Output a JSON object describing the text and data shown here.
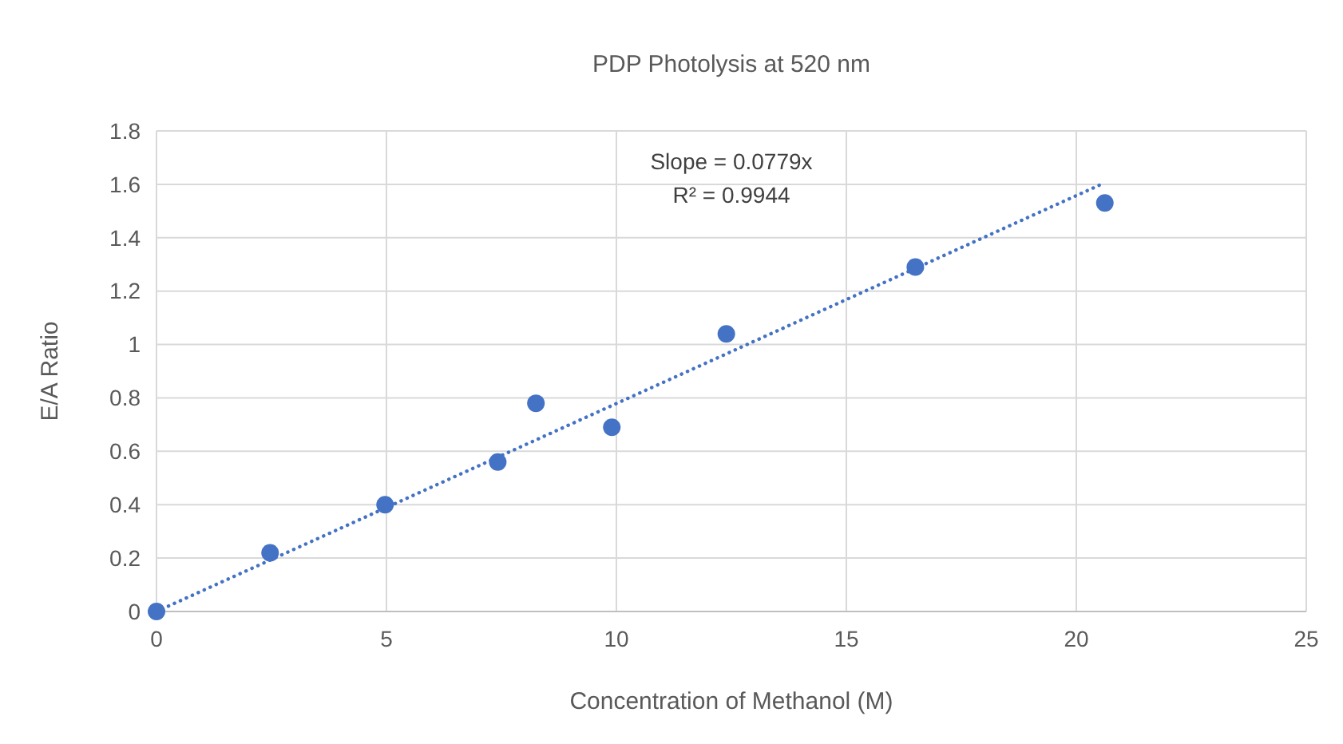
{
  "chart_data": {
    "type": "scatter",
    "title": "PDP Photolysis at 520 nm",
    "xlabel": "Concentration of Methanol (M)",
    "ylabel": "E/A Ratio",
    "xlim": [
      0,
      25
    ],
    "xticks": [
      0,
      5,
      10,
      15,
      20,
      25
    ],
    "ylim": [
      0,
      1.8
    ],
    "yticks": [
      0,
      0.2,
      0.4,
      0.6,
      0.8,
      1,
      1.2,
      1.4,
      1.6,
      1.8
    ],
    "grid": true,
    "marker": "circle",
    "series": [
      {
        "color": "#4472c4",
        "x": [
          0,
          2.47,
          4.97,
          7.42,
          8.25,
          9.9,
          12.39,
          16.5,
          20.62
        ],
        "values": [
          0,
          0.22,
          0.4,
          0.56,
          0.78,
          0.69,
          1.04,
          1.29,
          1.53
        ]
      },
      {
        "type": "line",
        "color": "#4472c4",
        "line_style": "dotted",
        "marker": "none",
        "x": [
          0,
          20.62
        ],
        "values": [
          0,
          1.606
        ]
      }
    ],
    "annotations": [
      "Slope = 0.0779x",
      "R² = 0.9944"
    ]
  }
}
